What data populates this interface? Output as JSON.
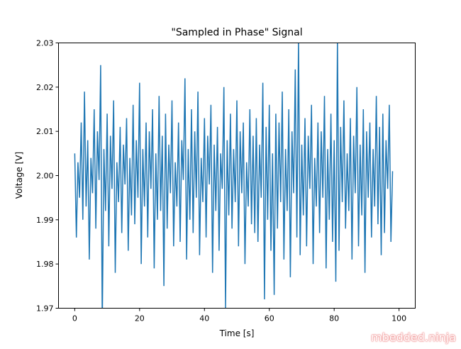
{
  "chart_data": {
    "type": "line",
    "title": "\"Sampled in Phase\" Signal",
    "xlabel": "Time [s]",
    "ylabel": "Voltage [V]",
    "xlim": [
      -5,
      105
    ],
    "ylim": [
      1.97,
      2.03
    ],
    "xticks": [
      "0",
      "20",
      "40",
      "60",
      "80",
      "100"
    ],
    "xtick_values": [
      0,
      20,
      40,
      60,
      80,
      100
    ],
    "yticks": [
      "1.97",
      "1.98",
      "1.99",
      "2.00",
      "2.01",
      "2.02",
      "2.03"
    ],
    "ytick_values": [
      1.97,
      1.98,
      1.99,
      2.0,
      2.01,
      2.02,
      2.03
    ],
    "color": "#1f77b4",
    "grid": false,
    "x_start": 0,
    "x_step": 0.5,
    "values": [
      2.005,
      1.986,
      2.003,
      1.995,
      2.012,
      1.99,
      2.019,
      1.993,
      2.008,
      1.981,
      2.004,
      1.996,
      2.015,
      1.988,
      2.01,
      1.999,
      2.025,
      1.966,
      2.006,
      1.992,
      2.014,
      1.984,
      2.009,
      1.997,
      2.017,
      1.978,
      2.003,
      1.994,
      2.011,
      1.987,
      2.007,
      1.998,
      2.013,
      1.983,
      2.004,
      1.991,
      2.016,
      1.989,
      2.008,
      1.995,
      2.021,
      1.98,
      2.006,
      1.993,
      2.012,
      1.986,
      2.01,
      1.997,
      2.015,
      1.979,
      2.005,
      1.99,
      2.018,
      1.992,
      2.009,
      1.975,
      2.014,
      1.988,
      2.007,
      1.996,
      2.017,
      1.984,
      2.003,
      1.993,
      2.012,
      1.985,
      2.008,
      1.999,
      2.022,
      1.981,
      2.006,
      1.99,
      2.015,
      1.987,
      2.01,
      1.995,
      2.019,
      1.982,
      2.004,
      1.994,
      2.013,
      1.986,
      2.009,
      1.998,
      2.016,
      1.978,
      2.007,
      1.992,
      2.011,
      1.983,
      2.005,
      1.997,
      2.02,
      1.97,
      2.008,
      1.991,
      2.014,
      1.988,
      2.006,
      1.994,
      2.017,
      1.984,
      2.01,
      1.996,
      2.012,
      1.98,
      2.003,
      1.993,
      2.015,
      1.989,
      2.009,
      1.987,
      2.013,
      1.985,
      2.007,
      1.995,
      2.021,
      1.972,
      2.011,
      1.99,
      2.016,
      1.983,
      2.005,
      1.973,
      2.014,
      1.988,
      2.012,
      1.994,
      2.019,
      1.981,
      2.006,
      1.992,
      2.015,
      1.977,
      2.01,
      1.996,
      2.024,
      1.986,
      2.031,
      1.982,
      2.007,
      1.991,
      2.013,
      1.984,
      2.009,
      1.997,
      2.016,
      1.98,
      2.004,
      1.993,
      2.012,
      1.987,
      2.01,
      1.995,
      2.018,
      1.979,
      2.006,
      1.99,
      2.014,
      1.985,
      2.008,
      1.976,
      2.031,
      1.983,
      2.011,
      1.994,
      2.017,
      1.988,
      2.005,
      1.992,
      2.013,
      1.981,
      2.009,
      1.996,
      2.02,
      1.984,
      2.007,
      1.991,
      2.015,
      1.978,
      2.01,
      1.995,
      2.012,
      1.986,
      2.006,
      1.993,
      2.018,
      1.989,
      2.011,
      1.982,
      2.014,
      1.987,
      2.008,
      1.997,
      2.016,
      1.985,
      2.001
    ]
  },
  "watermark": "mbedded.ninja"
}
